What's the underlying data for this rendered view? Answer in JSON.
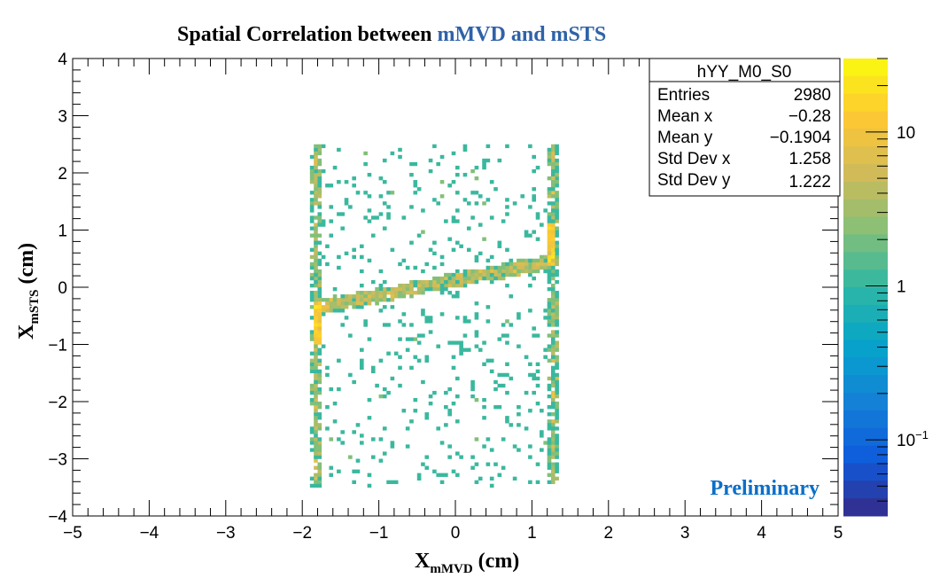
{
  "chart_data": {
    "type": "heatmap",
    "title_part1": "Spatial Correlation between ",
    "title_part2": "mMVD and mSTS",
    "xlabel_main": "X",
    "xlabel_sub": "mMVD",
    "xlabel_unit": " (cm)",
    "ylabel_main": "X",
    "ylabel_sub": "mSTS",
    "ylabel_unit": " (cm)",
    "xlim": [
      -5,
      5
    ],
    "ylim": [
      -4,
      4
    ],
    "x_ticks": [
      "−5",
      "−4",
      "−3",
      "−2",
      "−1",
      "0",
      "1",
      "2",
      "3",
      "4",
      "5"
    ],
    "y_ticks": [
      "−4",
      "−3",
      "−2",
      "−1",
      "0",
      "1",
      "2",
      "3",
      "4"
    ],
    "z_scale": "log",
    "zlim": [
      0.032,
      30
    ],
    "z_ticks": [
      {
        "value": 10,
        "label": "10"
      },
      {
        "value": 1,
        "label": "1"
      },
      {
        "value": 0.1,
        "label": "10",
        "sup": "−1"
      }
    ],
    "palette": [
      "#352a87",
      "#0f5cdd",
      "#1481d6",
      "#06a4ca",
      "#2eb7a4",
      "#87bf77",
      "#d1bb59",
      "#fec832",
      "#f9fb0e"
    ],
    "populated_region": {
      "x": [
        -1.85,
        1.3
      ],
      "y": [
        -3.45,
        2.5
      ]
    },
    "correlation_band": {
      "from": [
        -1.8,
        -0.35
      ],
      "to": [
        1.25,
        0.45
      ]
    },
    "hot_spots": [
      {
        "x": -1.8,
        "y": [
          -1.0,
          -0.3
        ]
      },
      {
        "x": 1.25,
        "y": [
          0.4,
          1.1
        ]
      }
    ],
    "annotation": "Preliminary",
    "annotation_color": "#0b6fc8",
    "title_accent_color": "#2f62a8",
    "stats": {
      "name": "hYY_M0_S0",
      "rows": [
        {
          "label": "Entries",
          "value": "2980"
        },
        {
          "label": "Mean x",
          "value": "−0.28"
        },
        {
          "label": "Mean y",
          "value": "−0.1904"
        },
        {
          "label": "Std Dev x",
          "value": "1.258"
        },
        {
          "label": "Std Dev y",
          "value": "1.222"
        }
      ]
    }
  }
}
